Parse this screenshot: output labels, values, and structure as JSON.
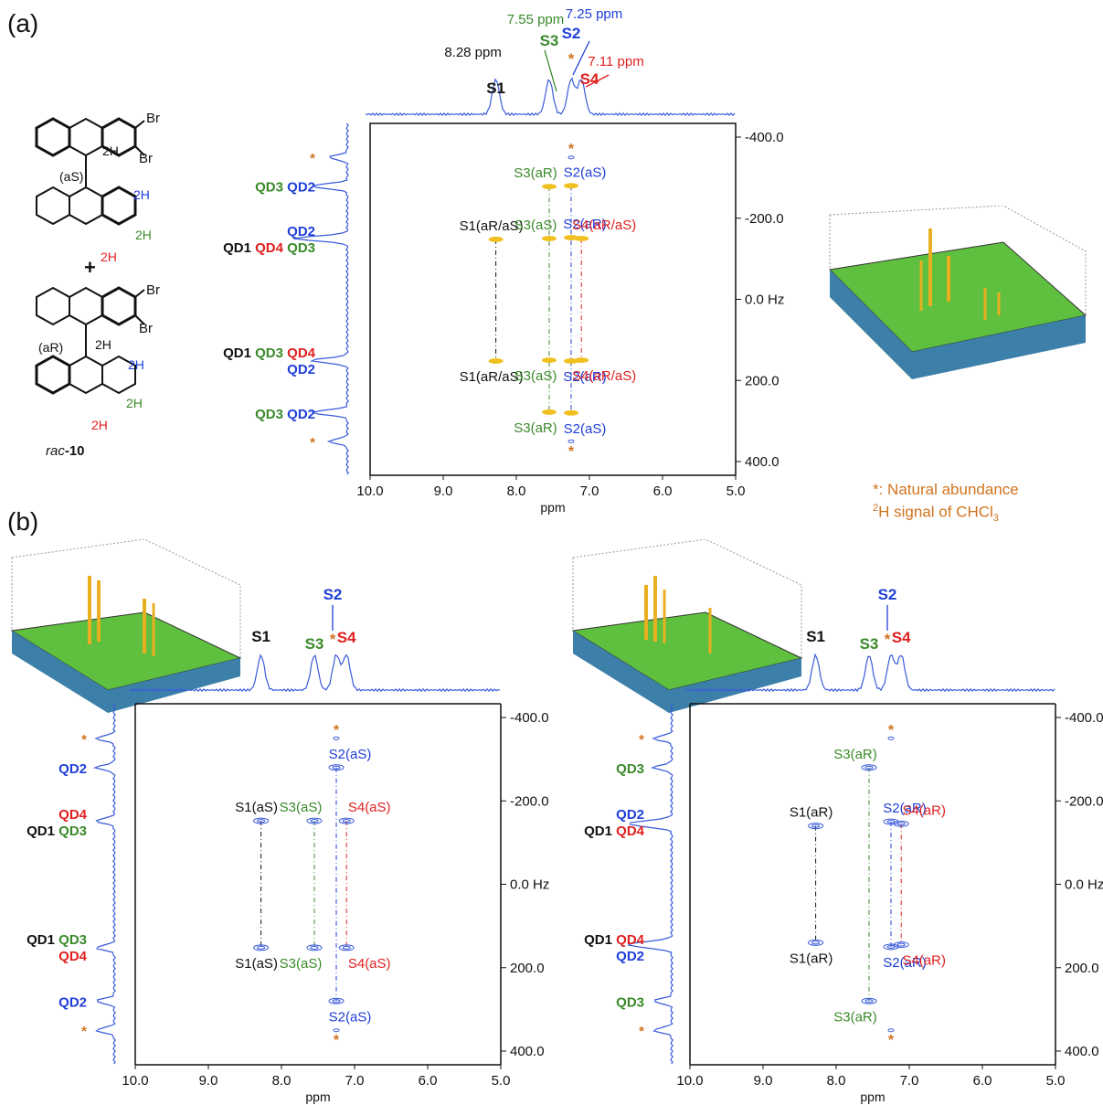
{
  "figure": {
    "panel_a_label": "(a)",
    "panel_b_label": "(b)",
    "note_line1": "*: Natural abundance",
    "note_line2_sup": "2",
    "note_line2_rest": "H signal of CHCl",
    "note_line2_sub": "3"
  },
  "colors": {
    "black": "#111111",
    "green": "#3a8a2a",
    "blue": "#1f3fd8",
    "red": "#e02020",
    "orange": "#d0731f",
    "spectrum": "#3a5bd9",
    "peak": "#f0c020"
  },
  "molecule": {
    "sub_br1": "Br",
    "sub_br2": "Br",
    "label_as": "(aS)",
    "label_ar": "(aR)",
    "h2": "2H",
    "plus": "+",
    "compound_italic": "rac",
    "compound_bold": "-10"
  },
  "chart_data": [
    {
      "type": "scatter",
      "panel": "a",
      "xlabel": "ppm",
      "ylabel": "Hz",
      "xlim": [
        10.0,
        5.0
      ],
      "ylim": [
        -400.0,
        400.0
      ],
      "x_ticks": [
        "10.0",
        "9.0",
        "8.0",
        "7.0",
        "6.0",
        "5.0"
      ],
      "y_ticks": [
        "-400.0",
        "-200.0",
        "0.0  Hz",
        "200.0",
        "400.0"
      ],
      "top_labels": [
        {
          "text": "8.28 ppm",
          "color": "black"
        },
        {
          "text": "S1",
          "color": "black"
        },
        {
          "text": "7.55 ppm",
          "color": "green"
        },
        {
          "text": "S3",
          "color": "green"
        },
        {
          "text": "7.25 ppm",
          "color": "blue"
        },
        {
          "text": "S2",
          "color": "blue"
        },
        {
          "text": "7.11 ppm",
          "color": "red"
        },
        {
          "text": "S4",
          "color": "red"
        },
        {
          "text": "*",
          "color": "orange"
        }
      ],
      "points": [
        {
          "x": 8.28,
          "y": -148,
          "label": "S1(aR/aS)",
          "color": "black"
        },
        {
          "x": 8.28,
          "y": 152,
          "label": "S1(aR/aS)",
          "color": "black"
        },
        {
          "x": 7.55,
          "y": -278,
          "label": "S3(aR)",
          "color": "green"
        },
        {
          "x": 7.55,
          "y": -150,
          "label": "S3(aS)",
          "color": "green"
        },
        {
          "x": 7.55,
          "y": 150,
          "label": "S3(aS)",
          "color": "green"
        },
        {
          "x": 7.55,
          "y": 278,
          "label": "S3(aR)",
          "color": "green"
        },
        {
          "x": 7.25,
          "y": -280,
          "label": "S2(aS)",
          "color": "blue"
        },
        {
          "x": 7.25,
          "y": -152,
          "label": "S2(aR)",
          "color": "blue"
        },
        {
          "x": 7.25,
          "y": 152,
          "label": "S2(aR)",
          "color": "blue"
        },
        {
          "x": 7.25,
          "y": 280,
          "label": "S2(aS)",
          "color": "blue"
        },
        {
          "x": 7.11,
          "y": -150,
          "label": "S4(aR/aS)",
          "color": "red"
        },
        {
          "x": 7.11,
          "y": 150,
          "label": "S4(aR/aS)",
          "color": "red"
        },
        {
          "x": 7.25,
          "y": -350,
          "label": "*",
          "color": "orange"
        },
        {
          "x": 7.25,
          "y": 350,
          "label": "*",
          "color": "orange"
        }
      ],
      "side_labels": [
        {
          "lines": [
            [
              {
                "t": "*",
                "c": "orange"
              }
            ]
          ]
        },
        {
          "lines": [
            [
              {
                "t": "QD3",
                "c": "green"
              },
              {
                "t": "QD2",
                "c": "blue"
              }
            ]
          ]
        },
        {
          "lines": [
            [
              {
                "t": "QD2",
                "c": "blue"
              }
            ],
            [
              {
                "t": "QD1",
                "c": "black"
              },
              {
                "t": "QD4",
                "c": "red"
              },
              {
                "t": "QD3",
                "c": "green"
              }
            ]
          ]
        },
        {
          "lines": [
            [
              {
                "t": "QD1",
                "c": "black"
              },
              {
                "t": "QD3",
                "c": "green"
              },
              {
                "t": "QD4",
                "c": "red"
              }
            ],
            [
              {
                "t": "QD2",
                "c": "blue"
              }
            ]
          ]
        },
        {
          "lines": [
            [
              {
                "t": "QD3",
                "c": "green"
              },
              {
                "t": "QD2",
                "c": "blue"
              }
            ]
          ]
        },
        {
          "lines": [
            [
              {
                "t": "*",
                "c": "orange"
              }
            ]
          ]
        }
      ]
    },
    {
      "type": "scatter",
      "panel": "b-left",
      "xlabel": "ppm",
      "ylabel": "Hz",
      "xlim": [
        10.0,
        5.0
      ],
      "ylim": [
        -400.0,
        400.0
      ],
      "x_ticks": [
        "10.0",
        "9.0",
        "8.0",
        "7.0",
        "6.0",
        "5.0"
      ],
      "y_ticks": [
        "-400.0",
        "-200.0",
        "0.0 Hz",
        "200.0",
        "400.0"
      ],
      "top_labels": [
        {
          "text": "S1",
          "color": "black"
        },
        {
          "text": "S3",
          "color": "green"
        },
        {
          "text": "S2",
          "color": "blue"
        },
        {
          "text": "*",
          "color": "orange"
        },
        {
          "text": "S4",
          "color": "red"
        }
      ],
      "points": [
        {
          "x": 8.28,
          "y": -152,
          "label": "S1(aS)",
          "color": "black"
        },
        {
          "x": 8.28,
          "y": 152,
          "label": "S1(aS)",
          "color": "black"
        },
        {
          "x": 7.55,
          "y": -152,
          "label": "S3(aS)",
          "color": "green"
        },
        {
          "x": 7.55,
          "y": 152,
          "label": "S3(aS)",
          "color": "green"
        },
        {
          "x": 7.25,
          "y": -280,
          "label": "S2(aS)",
          "color": "blue"
        },
        {
          "x": 7.25,
          "y": 280,
          "label": "S2(aS)",
          "color": "blue"
        },
        {
          "x": 7.11,
          "y": -152,
          "label": "S4(aS)",
          "color": "red"
        },
        {
          "x": 7.11,
          "y": 152,
          "label": "S4(aS)",
          "color": "red"
        },
        {
          "x": 7.25,
          "y": -350,
          "label": "*",
          "color": "orange"
        },
        {
          "x": 7.25,
          "y": 350,
          "label": "*",
          "color": "orange"
        }
      ],
      "side_labels": [
        {
          "lines": [
            [
              {
                "t": "*",
                "c": "orange"
              }
            ]
          ]
        },
        {
          "lines": [
            [
              {
                "t": "QD2",
                "c": "blue"
              }
            ]
          ]
        },
        {
          "lines": [
            [
              {
                "t": "QD4",
                "c": "red"
              }
            ],
            [
              {
                "t": "QD1",
                "c": "black"
              },
              {
                "t": "QD3",
                "c": "green"
              }
            ]
          ]
        },
        {
          "lines": [
            [
              {
                "t": "QD1",
                "c": "black"
              },
              {
                "t": "QD3",
                "c": "green"
              }
            ],
            [
              {
                "t": "QD4",
                "c": "red"
              }
            ]
          ]
        },
        {
          "lines": [
            [
              {
                "t": "QD2",
                "c": "blue"
              }
            ]
          ]
        },
        {
          "lines": [
            [
              {
                "t": "*",
                "c": "orange"
              }
            ]
          ]
        }
      ]
    },
    {
      "type": "scatter",
      "panel": "b-right",
      "xlabel": "ppm",
      "ylabel": "Hz",
      "xlim": [
        10.0,
        5.0
      ],
      "ylim": [
        -400.0,
        400.0
      ],
      "x_ticks": [
        "10.0",
        "9.0",
        "8.0",
        "7.0",
        "6.0",
        "5.0"
      ],
      "y_ticks": [
        "-400.0",
        "-200.0",
        "0.0 Hz",
        "200.0",
        "400.0"
      ],
      "top_labels": [
        {
          "text": "S1",
          "color": "black"
        },
        {
          "text": "S3",
          "color": "green"
        },
        {
          "text": "S2",
          "color": "blue"
        },
        {
          "text": "*",
          "color": "orange"
        },
        {
          "text": "S4",
          "color": "red"
        }
      ],
      "points": [
        {
          "x": 8.28,
          "y": -140,
          "label": "S1(aR)",
          "color": "black"
        },
        {
          "x": 8.28,
          "y": 140,
          "label": "S1(aR)",
          "color": "black"
        },
        {
          "x": 7.55,
          "y": -280,
          "label": "S3(aR)",
          "color": "green"
        },
        {
          "x": 7.55,
          "y": 280,
          "label": "S3(aR)",
          "color": "green"
        },
        {
          "x": 7.25,
          "y": -150,
          "label": "S2(aR)",
          "color": "blue"
        },
        {
          "x": 7.25,
          "y": 150,
          "label": "S2(aR)",
          "color": "blue"
        },
        {
          "x": 7.11,
          "y": -145,
          "label": "S4(aR)",
          "color": "red"
        },
        {
          "x": 7.11,
          "y": 145,
          "label": "S4(aR)",
          "color": "red"
        },
        {
          "x": 7.25,
          "y": -350,
          "label": "*",
          "color": "orange"
        },
        {
          "x": 7.25,
          "y": 350,
          "label": "*",
          "color": "orange"
        }
      ],
      "side_labels": [
        {
          "lines": [
            [
              {
                "t": "*",
                "c": "orange"
              }
            ]
          ]
        },
        {
          "lines": [
            [
              {
                "t": "QD3",
                "c": "green"
              }
            ]
          ]
        },
        {
          "lines": [
            [
              {
                "t": "QD2",
                "c": "blue"
              }
            ],
            [
              {
                "t": "QD1",
                "c": "black"
              },
              {
                "t": "QD4",
                "c": "red"
              }
            ]
          ]
        },
        {
          "lines": [
            [
              {
                "t": "QD1",
                "c": "black"
              },
              {
                "t": "QD4",
                "c": "red"
              }
            ],
            [
              {
                "t": "QD2",
                "c": "blue"
              }
            ]
          ]
        },
        {
          "lines": [
            [
              {
                "t": "QD3",
                "c": "green"
              }
            ]
          ]
        },
        {
          "lines": [
            [
              {
                "t": "*",
                "c": "orange"
              }
            ]
          ]
        }
      ]
    }
  ]
}
